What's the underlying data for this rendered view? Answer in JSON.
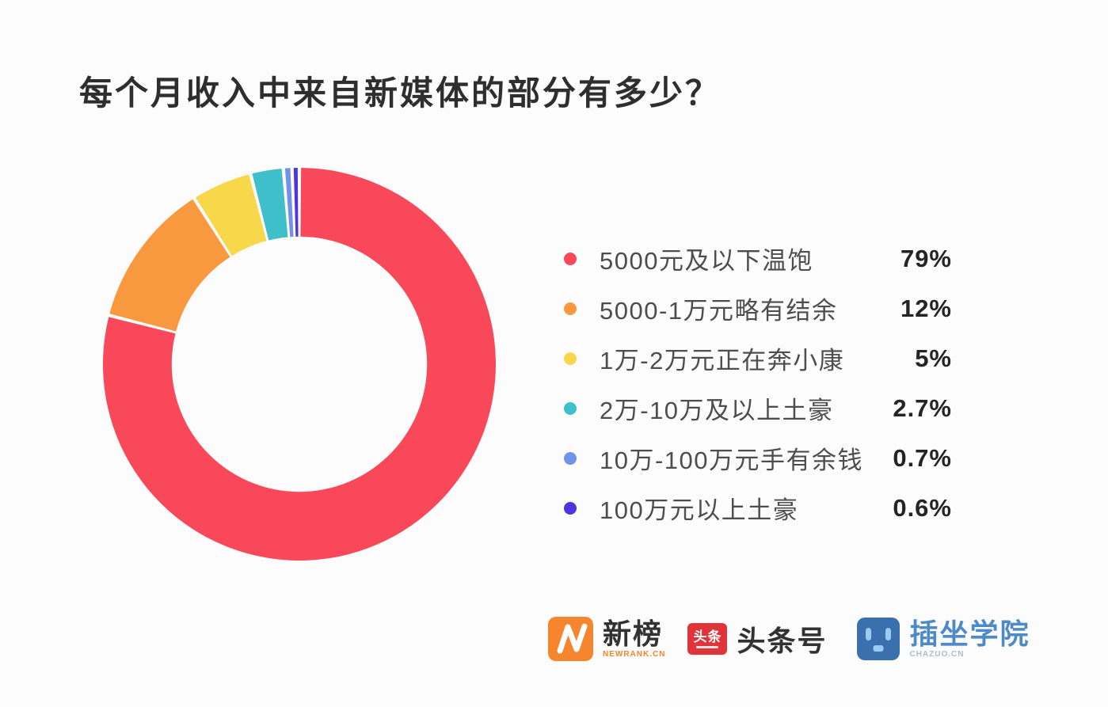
{
  "title": "每个月收入中来自新媒体的部分有多少？",
  "chart_data": {
    "type": "pie",
    "subtype": "donut",
    "title": "每个月收入中来自新媒体的部分有多少？",
    "categories": [
      "5000元及以下温饱",
      "5000-1万元略有结余",
      "1万-2万元正在奔小康",
      "2万-10万及以上土豪",
      "10万-100万元手有余钱",
      "100万元以上土豪"
    ],
    "values": [
      79,
      12,
      5,
      2.7,
      0.7,
      0.6
    ],
    "value_labels": [
      "79%",
      "12%",
      "5%",
      "2.7%",
      "0.7%",
      "0.6%"
    ],
    "colors": [
      "#F8485A",
      "#F9993F",
      "#F8D84B",
      "#3FBFC9",
      "#7291E9",
      "#4F34DB"
    ],
    "start_angle_deg": 0,
    "direction": "clockwise",
    "hole_ratio": 0.65,
    "segment_gap_color": "#FCFCFC",
    "legend_position": "right"
  },
  "footer_logos": {
    "newrank": {
      "name": "新榜",
      "subtext": "NEWRANK.CN",
      "brand_color": "#F5862E"
    },
    "toutiao": {
      "icon_text": "头条",
      "name": "头条号",
      "brand_color": "#E0343B"
    },
    "chazuo": {
      "name": "插坐学院",
      "subtext": "CHAZUO.CN",
      "brand_color": "#3B70AE"
    }
  }
}
